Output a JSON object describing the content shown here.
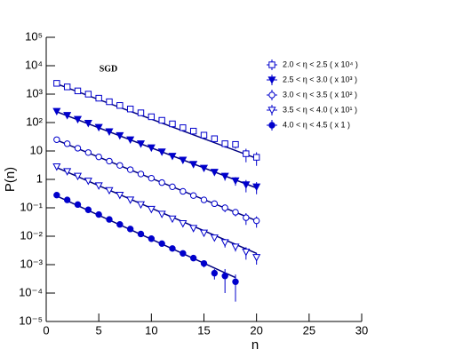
{
  "chart_data": {
    "type": "scatter",
    "annotation": "SGD",
    "x_label": "n",
    "y_label": "P(n)",
    "log_y": true,
    "legend_position": "top-right",
    "fit_color": "#000080",
    "xlim": [
      0,
      30
    ],
    "xticks": [
      0,
      5,
      10,
      15,
      20,
      25,
      30
    ],
    "ylim": [
      1e-05,
      100000
    ],
    "yticks": [
      {
        "value": 1e-05,
        "label": "10⁻⁵"
      },
      {
        "value": 0.0001,
        "label": "10⁻⁴"
      },
      {
        "value": 0.001,
        "label": "10⁻³"
      },
      {
        "value": 0.01,
        "label": "10⁻²"
      },
      {
        "value": 0.1,
        "label": "10⁻¹"
      },
      1,
      10,
      {
        "value": 100,
        "label": "10²"
      },
      {
        "value": 1000,
        "label": "10³"
      },
      {
        "value": 10000,
        "label": "10⁴"
      },
      {
        "value": 100000,
        "label": "10⁵"
      }
    ],
    "series": [
      {
        "name": "2.0 < η < 2.5 ( x 10⁴ )",
        "color": "#0000cc",
        "marker": "square-open",
        "x": [
          1,
          2,
          3,
          4,
          5,
          6,
          7,
          8,
          9,
          10,
          11,
          12,
          13,
          14,
          15,
          16,
          17,
          18,
          19,
          20
        ],
        "values": [
          2400,
          1800,
          1300,
          1000,
          720,
          540,
          400,
          300,
          220,
          160,
          120,
          90,
          66,
          50,
          36,
          27,
          18,
          17,
          8,
          6
        ],
        "errors": [
          72,
          54,
          39,
          30,
          22,
          16,
          12,
          9,
          7,
          5,
          10,
          7,
          5,
          4,
          5,
          4,
          5,
          5,
          4,
          3
        ],
        "fit": {
          "x": [
            1,
            20
          ],
          "values": [
            2300,
            5.5
          ]
        }
      },
      {
        "name": "2.5 < η < 3.0 ( x 10³ )",
        "color": "#0000cc",
        "marker": "triangle-filled",
        "x": [
          1,
          2,
          3,
          4,
          5,
          6,
          7,
          8,
          9,
          10,
          11,
          12,
          13,
          14,
          15,
          16,
          17,
          18,
          19,
          20
        ],
        "values": [
          250,
          180,
          130,
          95,
          68,
          48,
          35,
          25,
          18,
          13,
          9.3,
          6.6,
          4.8,
          3.4,
          2.5,
          1.8,
          1.3,
          0.9,
          0.65,
          0.55
        ],
        "errors": [
          7.5,
          5.4,
          3.9,
          2.9,
          2,
          1.4,
          1.1,
          0.8,
          0.5,
          0.4,
          0.7,
          0.5,
          0.4,
          0.3,
          0.4,
          0.3,
          0.4,
          0.3,
          0.3,
          0.25
        ],
        "fit": {
          "x": [
            1,
            20
          ],
          "values": [
            240,
            0.5
          ]
        }
      },
      {
        "name": "3.0 < η < 3.5 ( x 10² )",
        "color": "#0000cc",
        "marker": "circle-open",
        "x": [
          1,
          2,
          3,
          4,
          5,
          6,
          7,
          8,
          9,
          10,
          11,
          12,
          13,
          14,
          15,
          16,
          17,
          18,
          19,
          20
        ],
        "values": [
          25,
          18,
          12.5,
          8.8,
          6.2,
          4.4,
          3.1,
          2.2,
          1.55,
          1.1,
          0.77,
          0.55,
          0.38,
          0.27,
          0.19,
          0.14,
          0.1,
          0.07,
          0.045,
          0.035
        ],
        "errors": [
          0.75,
          0.54,
          0.38,
          0.26,
          0.19,
          0.13,
          0.09,
          0.07,
          0.05,
          0.03,
          0.06,
          0.04,
          0.03,
          0.02,
          0.03,
          0.02,
          0.03,
          0.02,
          0.02,
          0.015
        ],
        "fit": {
          "x": [
            1,
            20
          ],
          "values": [
            24,
            0.035
          ]
        }
      },
      {
        "name": "3.5 < η < 4.0 ( x 10¹ )",
        "color": "#0000cc",
        "marker": "triangle-open",
        "x": [
          1,
          2,
          3,
          4,
          5,
          6,
          7,
          8,
          9,
          10,
          11,
          12,
          13,
          14,
          15,
          16,
          17,
          18,
          19,
          20
        ],
        "values": [
          2.8,
          1.9,
          1.3,
          0.88,
          0.6,
          0.41,
          0.28,
          0.19,
          0.13,
          0.089,
          0.06,
          0.041,
          0.028,
          0.019,
          0.013,
          0.0088,
          0.006,
          0.0042,
          0.0028,
          0.0018
        ],
        "errors": [
          0.08,
          0.06,
          0.04,
          0.03,
          0.02,
          0.012,
          0.008,
          0.006,
          0.004,
          0.003,
          0.005,
          0.003,
          0.002,
          0.0015,
          0.002,
          0.0013,
          0.002,
          0.0013,
          0.0013,
          0.0008
        ],
        "fit": {
          "x": [
            1,
            20
          ],
          "values": [
            2.6,
            0.0025
          ]
        }
      },
      {
        "name": "4.0 < η < 4.5 ( x 1 )",
        "color": "#0000cc",
        "marker": "circle-filled",
        "x": [
          1,
          2,
          3,
          4,
          5,
          6,
          7,
          8,
          9,
          10,
          11,
          12,
          13,
          14,
          15,
          16,
          17,
          18
        ],
        "values": [
          0.28,
          0.19,
          0.13,
          0.085,
          0.058,
          0.039,
          0.026,
          0.018,
          0.012,
          0.0082,
          0.0055,
          0.0037,
          0.0025,
          0.0017,
          0.0011,
          0.0005,
          0.0004,
          0.00025
        ],
        "errors": [
          0.008,
          0.006,
          0.004,
          0.003,
          0.002,
          0.0012,
          0.0008,
          0.0005,
          0.0004,
          0.0003,
          0.0004,
          0.0003,
          0.0002,
          0.0003,
          0.0003,
          0.0002,
          0.0003,
          0.0002
        ],
        "fit": {
          "x": [
            1,
            18
          ],
          "values": [
            0.26,
            0.00035
          ]
        }
      }
    ]
  }
}
